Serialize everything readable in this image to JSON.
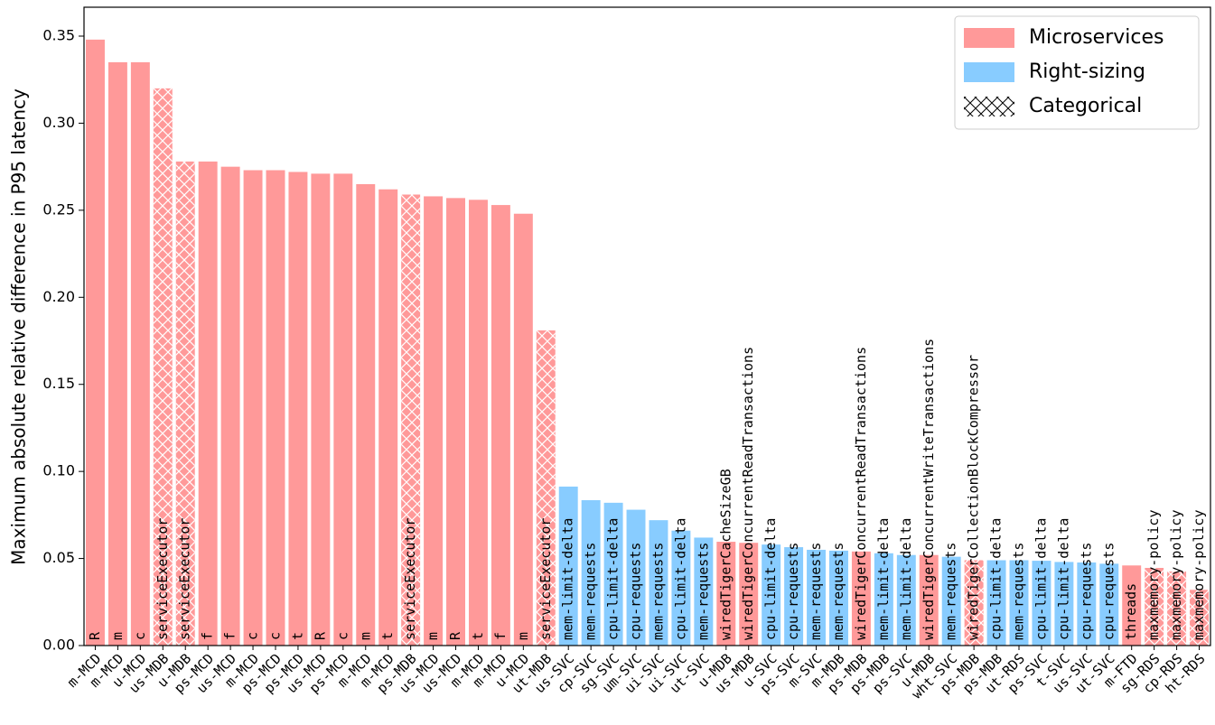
{
  "chart_data": {
    "type": "bar",
    "ylabel": "Maximum absolute relative difference in P95 latency",
    "ylim": [
      0,
      0.3666
    ],
    "yticks": [
      {
        "value": 0,
        "label": "0.00"
      },
      {
        "value": 0.05,
        "label": "0.05"
      },
      {
        "value": 0.1,
        "label": "0.10"
      },
      {
        "value": 0.15,
        "label": "0.15"
      },
      {
        "value": 0.2,
        "label": "0.20"
      },
      {
        "value": 0.25,
        "label": "0.25"
      },
      {
        "value": 0.3,
        "label": "0.30"
      },
      {
        "value": 0.35,
        "label": "0.35"
      }
    ],
    "legend": [
      {
        "name": "Microservices",
        "color": "#ff9999"
      },
      {
        "name": "Right-sizing",
        "color": "#88ccff"
      },
      {
        "name": "Categorical",
        "hatch": true
      }
    ],
    "legend_position": "upper right",
    "categories": [
      "m-MCD",
      "m-MCD",
      "u-MCD",
      "us-MDB",
      "u-MDB",
      "ps-MCD",
      "us-MCD",
      "m-MCD",
      "ps-MCD",
      "ps-MCD",
      "us-MCD",
      "ps-MCD",
      "m-MCD",
      "m-MCD",
      "ps-MDB",
      "us-MCD",
      "us-MCD",
      "m-MCD",
      "m-MCD",
      "u-MCD",
      "ut-MDB",
      "us-SVC",
      "cp-SVC",
      "sg-SVC",
      "um-SVC",
      "ui-SVC",
      "ui-SVC",
      "ut-SVC",
      "u-MDB",
      "us-MDB",
      "u-SVC",
      "ps-SVC",
      "m-SVC",
      "m-MDB",
      "ps-MDB",
      "ps-MDB",
      "ps-SVC",
      "u-MDB",
      "wht-SVC",
      "ps-MDB",
      "ps-MDB",
      "ut-RDS",
      "ps-SVC",
      "t-SVC",
      "us-SVC",
      "ut-SVC",
      "m-FTD",
      "sg-RDS",
      "cp-RDS",
      "ht-RDS"
    ],
    "bar_labels": [
      "R",
      "m",
      "c",
      "serviceExecutor",
      "serviceExecutor",
      "f",
      "f",
      "c",
      "c",
      "t",
      "R",
      "c",
      "m",
      "t",
      "serviceExecutor",
      "m",
      "R",
      "t",
      "f",
      "m",
      "serviceExecutor",
      "mem-limit-delta",
      "mem-requests",
      "cpu-limit-delta",
      "cpu-requests",
      "mem-requests",
      "cpu-limit-delta",
      "mem-requests",
      "wiredTigerCacheSizeGB",
      "wiredTigerConcurrentReadTransactions",
      "cpu-limit-delta",
      "cpu-requests",
      "mem-requests",
      "mem-requests",
      "wiredTigerConcurrentReadTransactions",
      "mem-limit-delta",
      "mem-limit-delta",
      "wiredTigerConcurrentWriteTransactions",
      "mem-requests",
      "wiredTigerCollectionBlockCompressor",
      "cpu-limit-delta",
      "mem-requests",
      "cpu-limit-delta",
      "cpu-limit-delta",
      "cpu-requests",
      "cpu-requests",
      "threads",
      "maxmemory-policy",
      "maxmemory-policy",
      "maxmemory-policy"
    ],
    "values": [
      0.348,
      0.335,
      0.335,
      0.32,
      0.278,
      0.278,
      0.275,
      0.273,
      0.273,
      0.272,
      0.271,
      0.271,
      0.265,
      0.262,
      0.259,
      0.258,
      0.257,
      0.256,
      0.253,
      0.248,
      0.181,
      0.0913,
      0.0835,
      0.082,
      0.078,
      0.072,
      0.066,
      0.062,
      0.0596,
      0.059,
      0.058,
      0.0565,
      0.055,
      0.0545,
      0.054,
      0.053,
      0.052,
      0.052,
      0.051,
      0.049,
      0.049,
      0.049,
      0.0487,
      0.048,
      0.0477,
      0.047,
      0.046,
      0.0446,
      0.0425,
      0.032
    ],
    "group": [
      0,
      0,
      0,
      0,
      0,
      0,
      0,
      0,
      0,
      0,
      0,
      0,
      0,
      0,
      0,
      0,
      0,
      0,
      0,
      0,
      0,
      1,
      1,
      1,
      1,
      1,
      1,
      1,
      0,
      0,
      1,
      1,
      1,
      1,
      0,
      1,
      1,
      0,
      1,
      0,
      1,
      1,
      1,
      1,
      1,
      1,
      0,
      0,
      0,
      0
    ],
    "categorical": [
      false,
      false,
      false,
      true,
      true,
      false,
      false,
      false,
      false,
      false,
      false,
      false,
      false,
      false,
      true,
      false,
      false,
      false,
      false,
      false,
      true,
      false,
      false,
      false,
      false,
      false,
      false,
      false,
      false,
      false,
      false,
      false,
      false,
      false,
      false,
      false,
      false,
      false,
      false,
      true,
      false,
      false,
      false,
      false,
      false,
      false,
      false,
      true,
      true,
      true
    ]
  }
}
